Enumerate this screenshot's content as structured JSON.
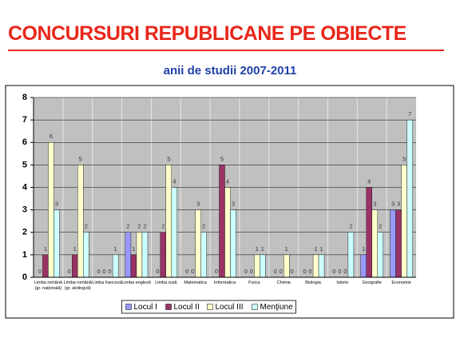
{
  "chart_data": {
    "type": "bar",
    "title": "CONCURSURI REPUBLICANE PE OBIECTE",
    "subtitle": "anii de studii 2007-2011",
    "categories": [
      "Limba română (gr. naţională)",
      "Limba română (gr. alolingvă)",
      "Limba franceză",
      "Limba engleză",
      "Limba rusă",
      "Matematica",
      "Informatica",
      "Fizica",
      "Chimia",
      "Biologia",
      "Istorie",
      "Geografie",
      "Economie"
    ],
    "series": [
      {
        "name": "Locul I",
        "color": "#9999ff",
        "values": [
          0,
          0,
          0,
          2,
          0,
          0,
          0,
          0,
          0,
          0,
          0,
          1,
          3
        ]
      },
      {
        "name": "Locul II",
        "color": "#993366",
        "values": [
          1,
          1,
          0,
          1,
          2,
          0,
          5,
          0,
          0,
          0,
          0,
          4,
          3
        ]
      },
      {
        "name": "Locul III",
        "color": "#ffffcc",
        "values": [
          6,
          5,
          0,
          2,
          5,
          3,
          4,
          1,
          1,
          1,
          0,
          3,
          5
        ]
      },
      {
        "name": "Menţiune",
        "color": "#ccffff",
        "values": [
          3,
          2,
          1,
          2,
          4,
          2,
          3,
          1,
          0,
          1,
          2,
          2,
          7
        ]
      }
    ],
    "ylim": [
      0,
      8
    ],
    "yticks": [
      0,
      1,
      2,
      3,
      4,
      5,
      6,
      7,
      8
    ],
    "grid": true,
    "legend": "bottom",
    "plot_background": "#c0c0c0"
  }
}
